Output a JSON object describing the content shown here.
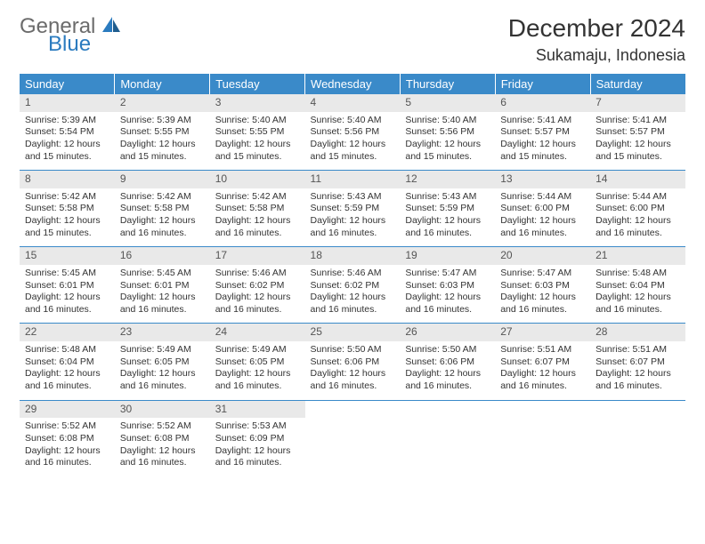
{
  "brand": {
    "part1": "General",
    "part2": "Blue"
  },
  "title": "December 2024",
  "location": "Sukamaju, Indonesia",
  "colors": {
    "header_bg": "#3a8ac9",
    "header_text": "#ffffff",
    "daynum_bg": "#e9e9e9",
    "daynum_text": "#555555",
    "border": "#3a8ac9",
    "body_text": "#333333",
    "logo_gray": "#6b6b6b",
    "logo_blue": "#2b7bbf"
  },
  "typography": {
    "title_fontsize": 28,
    "subtitle_fontsize": 18,
    "dayheader_fontsize": 13,
    "daynum_fontsize": 12,
    "cell_fontsize": 10.5
  },
  "days": [
    "Sunday",
    "Monday",
    "Tuesday",
    "Wednesday",
    "Thursday",
    "Friday",
    "Saturday"
  ],
  "weeks": [
    [
      {
        "n": "1",
        "sr": "5:39 AM",
        "ss": "5:54 PM",
        "dl": "12 hours and 15 minutes."
      },
      {
        "n": "2",
        "sr": "5:39 AM",
        "ss": "5:55 PM",
        "dl": "12 hours and 15 minutes."
      },
      {
        "n": "3",
        "sr": "5:40 AM",
        "ss": "5:55 PM",
        "dl": "12 hours and 15 minutes."
      },
      {
        "n": "4",
        "sr": "5:40 AM",
        "ss": "5:56 PM",
        "dl": "12 hours and 15 minutes."
      },
      {
        "n": "5",
        "sr": "5:40 AM",
        "ss": "5:56 PM",
        "dl": "12 hours and 15 minutes."
      },
      {
        "n": "6",
        "sr": "5:41 AM",
        "ss": "5:57 PM",
        "dl": "12 hours and 15 minutes."
      },
      {
        "n": "7",
        "sr": "5:41 AM",
        "ss": "5:57 PM",
        "dl": "12 hours and 15 minutes."
      }
    ],
    [
      {
        "n": "8",
        "sr": "5:42 AM",
        "ss": "5:58 PM",
        "dl": "12 hours and 15 minutes."
      },
      {
        "n": "9",
        "sr": "5:42 AM",
        "ss": "5:58 PM",
        "dl": "12 hours and 16 minutes."
      },
      {
        "n": "10",
        "sr": "5:42 AM",
        "ss": "5:58 PM",
        "dl": "12 hours and 16 minutes."
      },
      {
        "n": "11",
        "sr": "5:43 AM",
        "ss": "5:59 PM",
        "dl": "12 hours and 16 minutes."
      },
      {
        "n": "12",
        "sr": "5:43 AM",
        "ss": "5:59 PM",
        "dl": "12 hours and 16 minutes."
      },
      {
        "n": "13",
        "sr": "5:44 AM",
        "ss": "6:00 PM",
        "dl": "12 hours and 16 minutes."
      },
      {
        "n": "14",
        "sr": "5:44 AM",
        "ss": "6:00 PM",
        "dl": "12 hours and 16 minutes."
      }
    ],
    [
      {
        "n": "15",
        "sr": "5:45 AM",
        "ss": "6:01 PM",
        "dl": "12 hours and 16 minutes."
      },
      {
        "n": "16",
        "sr": "5:45 AM",
        "ss": "6:01 PM",
        "dl": "12 hours and 16 minutes."
      },
      {
        "n": "17",
        "sr": "5:46 AM",
        "ss": "6:02 PM",
        "dl": "12 hours and 16 minutes."
      },
      {
        "n": "18",
        "sr": "5:46 AM",
        "ss": "6:02 PM",
        "dl": "12 hours and 16 minutes."
      },
      {
        "n": "19",
        "sr": "5:47 AM",
        "ss": "6:03 PM",
        "dl": "12 hours and 16 minutes."
      },
      {
        "n": "20",
        "sr": "5:47 AM",
        "ss": "6:03 PM",
        "dl": "12 hours and 16 minutes."
      },
      {
        "n": "21",
        "sr": "5:48 AM",
        "ss": "6:04 PM",
        "dl": "12 hours and 16 minutes."
      }
    ],
    [
      {
        "n": "22",
        "sr": "5:48 AM",
        "ss": "6:04 PM",
        "dl": "12 hours and 16 minutes."
      },
      {
        "n": "23",
        "sr": "5:49 AM",
        "ss": "6:05 PM",
        "dl": "12 hours and 16 minutes."
      },
      {
        "n": "24",
        "sr": "5:49 AM",
        "ss": "6:05 PM",
        "dl": "12 hours and 16 minutes."
      },
      {
        "n": "25",
        "sr": "5:50 AM",
        "ss": "6:06 PM",
        "dl": "12 hours and 16 minutes."
      },
      {
        "n": "26",
        "sr": "5:50 AM",
        "ss": "6:06 PM",
        "dl": "12 hours and 16 minutes."
      },
      {
        "n": "27",
        "sr": "5:51 AM",
        "ss": "6:07 PM",
        "dl": "12 hours and 16 minutes."
      },
      {
        "n": "28",
        "sr": "5:51 AM",
        "ss": "6:07 PM",
        "dl": "12 hours and 16 minutes."
      }
    ],
    [
      {
        "n": "29",
        "sr": "5:52 AM",
        "ss": "6:08 PM",
        "dl": "12 hours and 16 minutes."
      },
      {
        "n": "30",
        "sr": "5:52 AM",
        "ss": "6:08 PM",
        "dl": "12 hours and 16 minutes."
      },
      {
        "n": "31",
        "sr": "5:53 AM",
        "ss": "6:09 PM",
        "dl": "12 hours and 16 minutes."
      },
      null,
      null,
      null,
      null
    ]
  ],
  "labels": {
    "sunrise": "Sunrise: ",
    "sunset": "Sunset: ",
    "daylight": "Daylight: "
  }
}
